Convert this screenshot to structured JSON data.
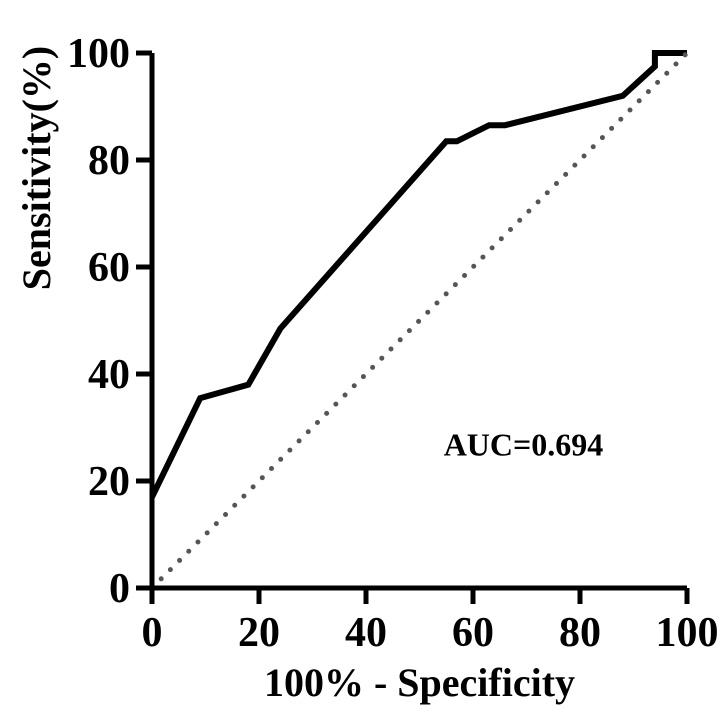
{
  "chart_data": {
    "type": "line",
    "title": "",
    "xlabel": "100% - Specificity",
    "ylabel": "Sensitivity(%)",
    "xlim": [
      0,
      100
    ],
    "ylim": [
      0,
      100
    ],
    "x_ticks": [
      0,
      20,
      40,
      60,
      80,
      100
    ],
    "y_ticks": [
      0,
      20,
      40,
      60,
      80,
      100
    ],
    "x_tick_labels": [
      "0",
      "20",
      "40",
      "60",
      "80",
      "100"
    ],
    "y_tick_labels": [
      "0",
      "20",
      "40",
      "60",
      "80",
      "100"
    ],
    "grid": false,
    "legend": "none",
    "series": [
      {
        "style": "solid",
        "color": "#000000",
        "points": [
          [
            0,
            17
          ],
          [
            9,
            35.5
          ],
          [
            18,
            38
          ],
          [
            24,
            48.5
          ],
          [
            55,
            83.5
          ],
          [
            57,
            83.5
          ],
          [
            63,
            86.5
          ],
          [
            66,
            86.5
          ],
          [
            88,
            92
          ],
          [
            94,
            97.5
          ],
          [
            94,
            100
          ],
          [
            100,
            100
          ]
        ]
      },
      {
        "style": "dotted",
        "color": "#555555",
        "points": [
          [
            0,
            0
          ],
          [
            100,
            100
          ]
        ]
      }
    ],
    "annotations": [
      {
        "text": "AUC=0.694",
        "x": 62,
        "y": 27
      }
    ]
  }
}
